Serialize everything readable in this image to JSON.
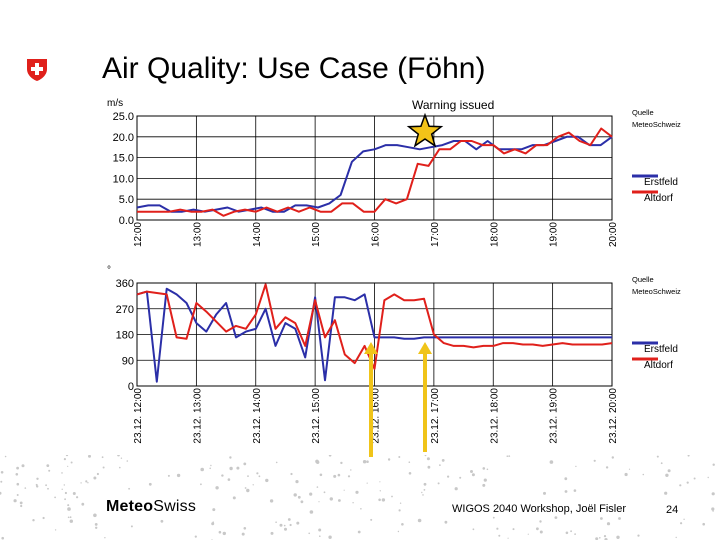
{
  "slide": {
    "title": "Air Quality: Use Case (Föhn)",
    "warning": "Warning issued",
    "footer_brand_bold": "Meteo",
    "footer_brand_rest": "Swiss",
    "footer_text": "WIGOS 2040 Workshop, Joël Fisler",
    "page": "24"
  },
  "colors": {
    "erstfeld": "#2b2fa8",
    "altdorf": "#e0201b",
    "arrow": "#f0c419",
    "star": "#f3c318"
  },
  "chart_data": [
    {
      "type": "line",
      "unit": "m/s",
      "source": "Quelle MeteoSchweiz",
      "ylim": [
        0,
        25
      ],
      "yticks": [
        "0.0",
        "5.0",
        "10.0",
        "15.0",
        "20.0",
        "25.0"
      ],
      "xticks": [
        "12:00",
        "13:00",
        "14:00",
        "15:00",
        "16:00",
        "17:00",
        "18:00",
        "19:00",
        "20:00"
      ],
      "grid": true,
      "legend_position": "right",
      "series": [
        {
          "name": "Erstfeld",
          "values": [
            3,
            3.5,
            3.5,
            2,
            2,
            2.5,
            2,
            2.5,
            3,
            2,
            2.5,
            3,
            2,
            2,
            3.5,
            3.5,
            3,
            4,
            6,
            14,
            16.5,
            17,
            18,
            18,
            17.5,
            17,
            17.5,
            18,
            19,
            19,
            17,
            19,
            17,
            17,
            17,
            18,
            18,
            19,
            20,
            20,
            18,
            18,
            20
          ]
        },
        {
          "name": "Altdorf",
          "values": [
            2,
            2,
            2,
            2,
            2.5,
            2,
            2,
            2.5,
            1,
            2,
            2.5,
            2,
            3,
            2,
            3,
            2,
            3,
            2,
            2,
            4,
            4,
            2,
            2,
            5,
            4,
            5,
            13.5,
            13,
            17,
            17,
            19,
            19,
            18,
            18,
            16,
            17,
            16,
            18,
            18,
            20,
            21,
            19,
            18,
            22,
            20
          ]
        }
      ]
    },
    {
      "type": "line",
      "unit": "°",
      "source": "Quelle MeteoSchweiz",
      "ylim": [
        0,
        360
      ],
      "yticks": [
        "0",
        "90",
        "180",
        "270",
        "360"
      ],
      "xticks": [
        "23.12. 12:00",
        "23.12. 13:00",
        "23.12. 14:00",
        "23.12. 15:00",
        "23.12. 16:00",
        "23.12. 17:00",
        "23.12. 18:00",
        "23.12. 19:00",
        "23.12. 20:00"
      ],
      "grid": true,
      "legend_position": "right",
      "series": [
        {
          "name": "Erstfeld",
          "values": [
            320,
            330,
            15,
            340,
            320,
            290,
            220,
            190,
            250,
            290,
            170,
            190,
            200,
            270,
            140,
            220,
            200,
            100,
            310,
            20,
            310,
            310,
            300,
            320,
            170,
            170,
            170,
            165,
            165,
            170,
            170,
            170,
            170,
            170,
            170,
            170,
            170,
            170,
            170,
            170,
            170,
            170,
            170,
            170,
            170,
            170,
            170,
            170,
            170
          ]
        },
        {
          "name": "Altdorf",
          "values": [
            320,
            330,
            325,
            320,
            170,
            165,
            290,
            260,
            225,
            190,
            210,
            200,
            250,
            355,
            200,
            240,
            220,
            140,
            300,
            170,
            230,
            110,
            80,
            140,
            60,
            300,
            320,
            300,
            300,
            305,
            180,
            150,
            140,
            140,
            135,
            140,
            140,
            150,
            150,
            145,
            145,
            140,
            145,
            150,
            145,
            145,
            145,
            145,
            150
          ]
        }
      ]
    }
  ],
  "legend": {
    "erstfeld": "Erstfeld",
    "altdorf": "Altdorf"
  }
}
